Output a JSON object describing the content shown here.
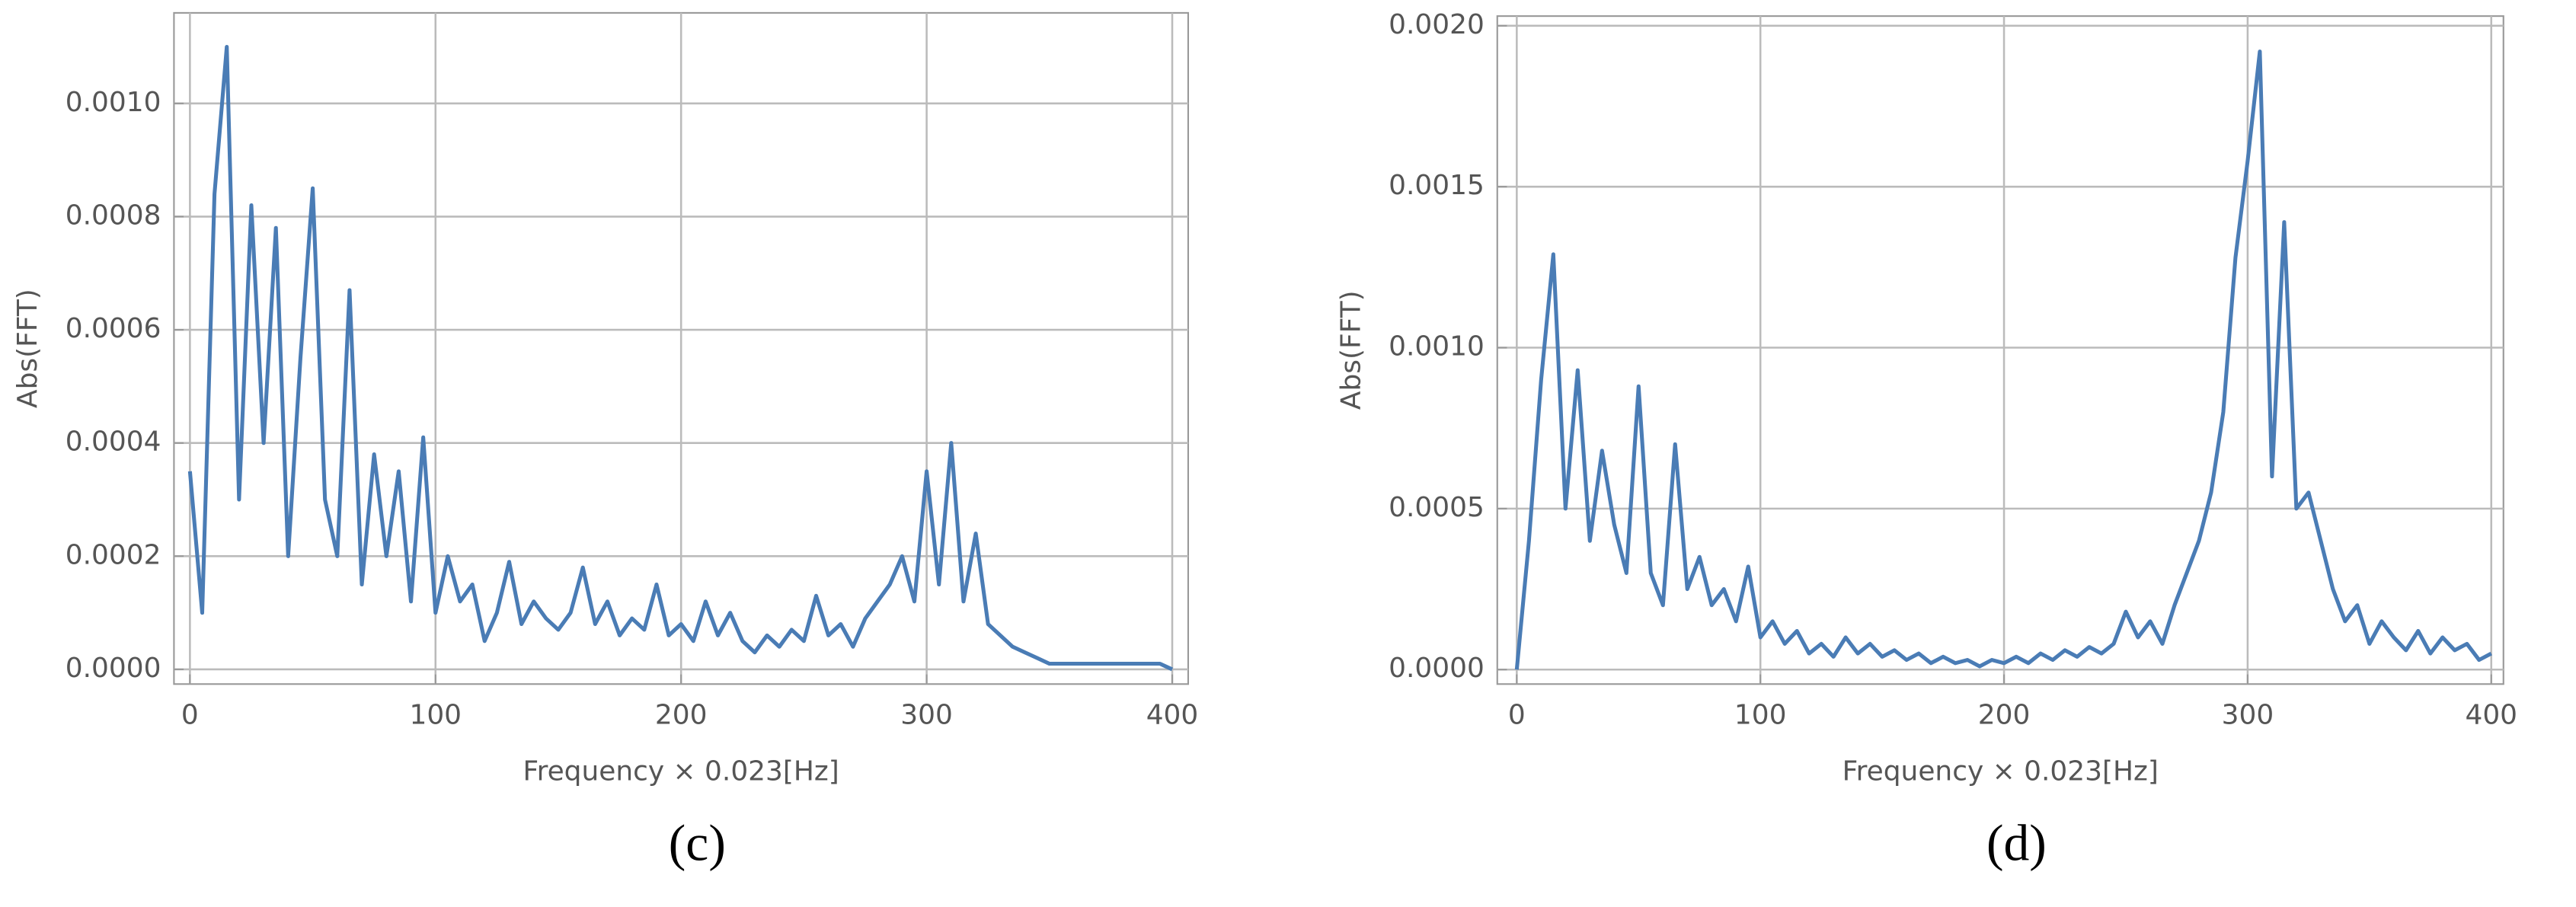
{
  "chart_data": [
    {
      "type": "line",
      "caption": "(c)",
      "x_label": "Frequency × 0.023[Hz]",
      "y_label": "Abs(FFT)",
      "color": "#4a7cb5",
      "grid": true,
      "xlim": [
        -6.5,
        406.5
      ],
      "ylim": [
        -2.6e-05,
        0.00116
      ],
      "xticks": [
        0,
        100,
        200,
        300,
        400
      ],
      "yticks": [
        {
          "value": 0,
          "label": "0.0000"
        },
        {
          "value": 0.0002,
          "label": "0.0002"
        },
        {
          "value": 0.0004,
          "label": "0.0004"
        },
        {
          "value": 0.0006,
          "label": "0.0006"
        },
        {
          "value": 0.0008,
          "label": "0.0008"
        },
        {
          "value": 0.001,
          "label": "0.0010"
        }
      ],
      "x": [
        0,
        5,
        10,
        15,
        20,
        25,
        30,
        35,
        40,
        45,
        50,
        55,
        60,
        65,
        70,
        75,
        80,
        85,
        90,
        95,
        100,
        105,
        110,
        115,
        120,
        125,
        130,
        135,
        140,
        145,
        150,
        155,
        160,
        165,
        170,
        175,
        180,
        185,
        190,
        195,
        200,
        205,
        210,
        215,
        220,
        225,
        230,
        235,
        240,
        245,
        250,
        255,
        260,
        265,
        270,
        275,
        280,
        285,
        290,
        295,
        300,
        305,
        310,
        315,
        320,
        325,
        330,
        335,
        340,
        345,
        350,
        355,
        360,
        365,
        370,
        375,
        380,
        385,
        390,
        395,
        400
      ],
      "values": [
        0.00035,
        0.0001,
        0.00084,
        0.0011,
        0.0003,
        0.00082,
        0.0004,
        0.00078,
        0.0002,
        0.00055,
        0.00085,
        0.0003,
        0.0002,
        0.00067,
        0.00015,
        0.00038,
        0.0002,
        0.00035,
        0.00012,
        0.00041,
        0.0001,
        0.0002,
        0.00012,
        0.00015,
        5e-05,
        0.0001,
        0.00019,
        8e-05,
        0.00012,
        9e-05,
        7e-05,
        0.0001,
        0.00018,
        8e-05,
        0.00012,
        6e-05,
        9e-05,
        7e-05,
        0.00015,
        6e-05,
        8e-05,
        5e-05,
        0.00012,
        6e-05,
        0.0001,
        5e-05,
        3e-05,
        6e-05,
        4e-05,
        7e-05,
        5e-05,
        0.00013,
        6e-05,
        8e-05,
        4e-05,
        9e-05,
        0.00012,
        0.00015,
        0.0002,
        0.00012,
        0.00035,
        0.00015,
        0.0004,
        0.00012,
        0.00024,
        8e-05,
        6e-05,
        4e-05,
        3e-05,
        2e-05,
        1e-05,
        1e-05,
        1e-05,
        1e-05,
        1e-05,
        1e-05,
        1e-05,
        1e-05,
        1e-05,
        1e-05,
        0
      ]
    },
    {
      "type": "line",
      "caption": "(d)",
      "x_label": "Frequency × 0.023[Hz]",
      "y_label": "Abs(FFT)",
      "color": "#4a7cb5",
      "grid": true,
      "xlim": [
        -8,
        405
      ],
      "ylim": [
        -4.5e-05,
        0.00203
      ],
      "xticks": [
        0,
        100,
        200,
        300,
        400
      ],
      "yticks": [
        {
          "value": 0,
          "label": "0.0000"
        },
        {
          "value": 0.0005,
          "label": "0.0005"
        },
        {
          "value": 0.001,
          "label": "0.0010"
        },
        {
          "value": 0.0015,
          "label": "0.0015"
        },
        {
          "value": 0.002,
          "label": "0.0020"
        }
      ],
      "x": [
        0,
        5,
        10,
        15,
        20,
        25,
        30,
        35,
        40,
        45,
        50,
        55,
        60,
        65,
        70,
        75,
        80,
        85,
        90,
        95,
        100,
        105,
        110,
        115,
        120,
        125,
        130,
        135,
        140,
        145,
        150,
        155,
        160,
        165,
        170,
        175,
        180,
        185,
        190,
        195,
        200,
        205,
        210,
        215,
        220,
        225,
        230,
        235,
        240,
        245,
        250,
        255,
        260,
        265,
        270,
        275,
        280,
        285,
        290,
        295,
        300,
        305,
        310,
        315,
        320,
        325,
        330,
        335,
        340,
        345,
        350,
        355,
        360,
        365,
        370,
        375,
        380,
        385,
        390,
        395,
        400
      ],
      "values": [
        0,
        0.0004,
        0.0009,
        0.00129,
        0.0005,
        0.00093,
        0.0004,
        0.00068,
        0.00045,
        0.0003,
        0.00088,
        0.0003,
        0.0002,
        0.0007,
        0.00025,
        0.00035,
        0.0002,
        0.00025,
        0.00015,
        0.00032,
        0.0001,
        0.00015,
        8e-05,
        0.00012,
        5e-05,
        8e-05,
        4e-05,
        0.0001,
        5e-05,
        8e-05,
        4e-05,
        6e-05,
        3e-05,
        5e-05,
        2e-05,
        4e-05,
        2e-05,
        3e-05,
        1e-05,
        3e-05,
        2e-05,
        4e-05,
        2e-05,
        5e-05,
        3e-05,
        6e-05,
        4e-05,
        7e-05,
        5e-05,
        8e-05,
        0.00018,
        0.0001,
        0.00015,
        8e-05,
        0.0002,
        0.0003,
        0.0004,
        0.00055,
        0.0008,
        0.00128,
        0.00158,
        0.00192,
        0.0006,
        0.00139,
        0.0005,
        0.00055,
        0.0004,
        0.00025,
        0.00015,
        0.0002,
        8e-05,
        0.00015,
        0.0001,
        6e-05,
        0.00012,
        5e-05,
        0.0001,
        6e-05,
        8e-05,
        3e-05,
        5e-05
      ]
    }
  ]
}
